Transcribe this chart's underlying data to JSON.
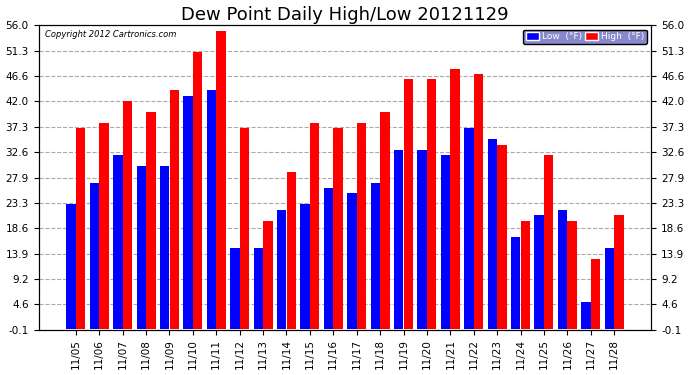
{
  "title": "Dew Point Daily High/Low 20121129",
  "copyright": "Copyright 2012 Cartronics.com",
  "dates": [
    "11/05",
    "11/06",
    "11/07",
    "11/08",
    "11/09",
    "11/10",
    "11/11",
    "11/12",
    "11/13",
    "11/14",
    "11/15",
    "11/16",
    "11/17",
    "11/18",
    "11/19",
    "11/20",
    "11/21",
    "11/22",
    "11/23",
    "11/24",
    "11/25",
    "11/26",
    "11/27",
    "11/28"
  ],
  "low_vals": [
    23,
    27,
    32,
    30,
    30,
    43,
    44,
    15,
    15,
    22,
    23,
    26,
    25,
    27,
    33,
    33,
    32,
    37,
    35,
    17,
    21,
    22,
    5,
    15
  ],
  "high_vals": [
    37,
    38,
    42,
    40,
    44,
    51,
    55,
    37,
    20,
    29,
    38,
    37,
    38,
    40,
    46,
    46,
    48,
    47,
    34,
    20,
    32,
    20,
    13,
    21
  ],
  "low_color": "#0000FF",
  "high_color": "#FF0000",
  "bg_color": "#FFFFFF",
  "grid_color": "#AAAAAA",
  "yticks": [
    -0.1,
    4.6,
    9.2,
    13.9,
    18.6,
    23.3,
    27.9,
    32.6,
    37.3,
    42.0,
    46.6,
    51.3,
    56.0
  ],
  "ymin": -0.1,
  "ymax": 56.0,
  "title_fontsize": 13,
  "tick_fontsize": 7.5
}
